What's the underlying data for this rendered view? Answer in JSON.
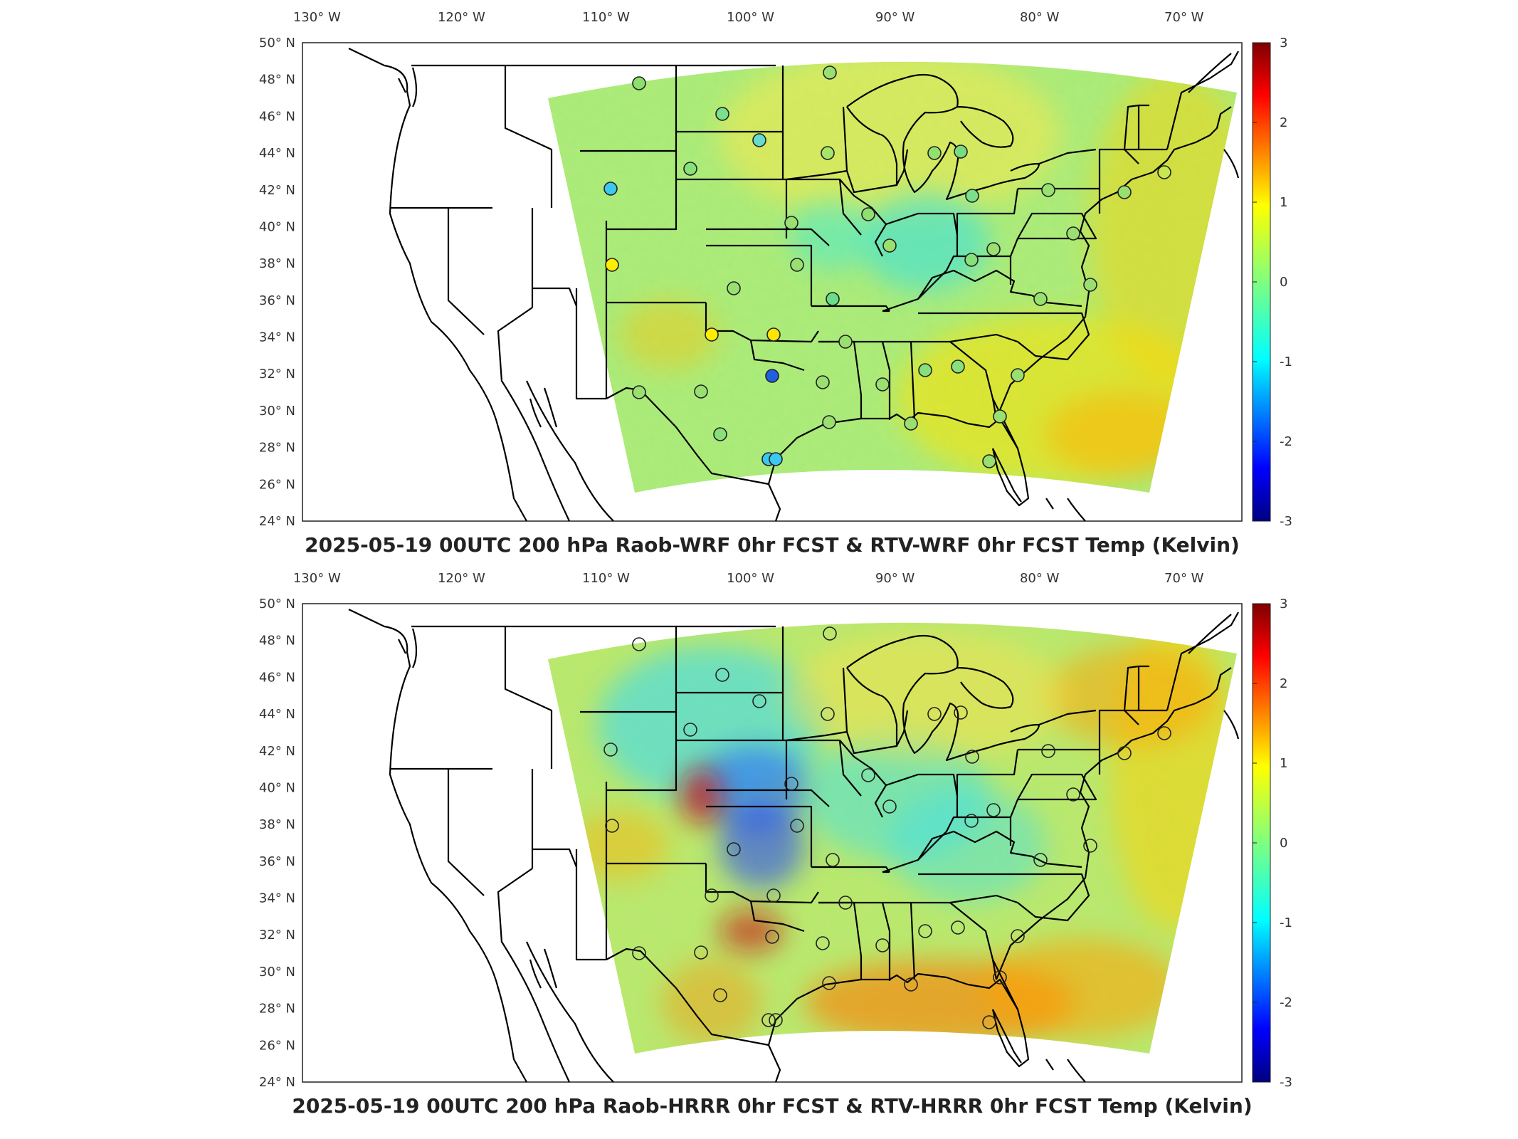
{
  "figure": {
    "panels": [
      {
        "id": "wrf",
        "title": "2025-05-19 00UTC 200 hPa Raob-WRF 0hr FCST & RTV-WRF 0hr FCST Temp (Kelvin)",
        "variant": "mild"
      },
      {
        "id": "hrrr",
        "title": "2025-05-19 00UTC 200 hPa Raob-HRRR 0hr FCST & RTV-HRRR 0hr FCST Temp (Kelvin)",
        "variant": "strong"
      }
    ],
    "lon_ticks": [
      "130° W",
      "120° W",
      "110° W",
      "100° W",
      "90° W",
      "80° W",
      "70° W"
    ],
    "lon_values": [
      -130,
      -120,
      -110,
      -100,
      -90,
      -80,
      -70
    ],
    "lat_ticks": [
      "50° N",
      "48° N",
      "46° N",
      "44° N",
      "42° N",
      "40° N",
      "38° N",
      "36° N",
      "34° N",
      "32° N",
      "30° N",
      "28° N",
      "26° N",
      "24° N"
    ],
    "lat_values": [
      50,
      48,
      46,
      44,
      42,
      40,
      38,
      36,
      34,
      32,
      30,
      28,
      26,
      24
    ],
    "lon_range": [
      -131,
      -66
    ],
    "lat_range": [
      24,
      50
    ],
    "colorbar": {
      "ticks": [
        "3",
        "2",
        "1",
        "0",
        "-1",
        "-2",
        "-3"
      ],
      "values": [
        3,
        2,
        1,
        0,
        -1,
        -2,
        -3
      ],
      "range": [
        -3,
        3
      ],
      "colormap": "jet"
    },
    "colors": {
      "border": "#000000",
      "background": "#ffffff",
      "text": "#333333"
    }
  }
}
